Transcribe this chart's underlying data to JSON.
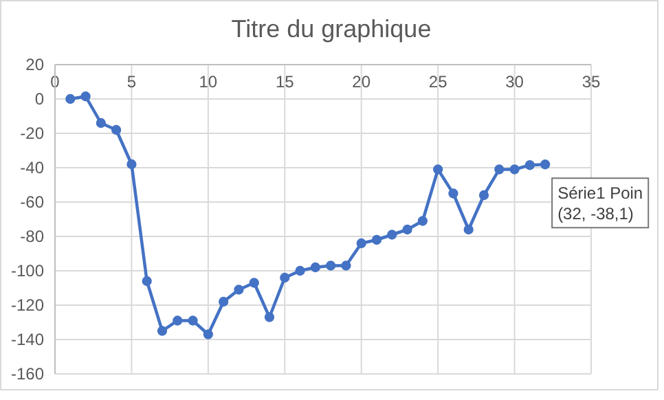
{
  "chart_data": {
    "type": "line",
    "title": "Titre du graphique",
    "x": [
      1,
      2,
      3,
      4,
      5,
      6,
      7,
      8,
      9,
      10,
      11,
      12,
      13,
      14,
      15,
      16,
      17,
      18,
      19,
      20,
      21,
      22,
      23,
      24,
      25,
      26,
      27,
      28,
      29,
      30,
      31,
      32
    ],
    "series": [
      {
        "color": "#4472c4",
        "values": [
          0,
          1.5,
          -14,
          -18,
          -38,
          -106,
          -135,
          -129,
          -129,
          -137,
          -118,
          -111,
          -107,
          -127,
          -104,
          -100,
          -98,
          -97,
          -97,
          -84,
          -82,
          -79,
          -76,
          -71,
          -41,
          -55,
          -76,
          -56,
          -41,
          -41,
          -38.5,
          -38.1
        ]
      }
    ],
    "xlim": [
      0,
      35
    ],
    "xticks": [
      0,
      5,
      10,
      15,
      20,
      25,
      30,
      35
    ],
    "ylim": [
      -160,
      20
    ],
    "yticks": [
      -160,
      -140,
      -120,
      -100,
      -80,
      -60,
      -40,
      -20,
      0,
      20
    ],
    "grid": true,
    "marker": "circle",
    "line_style": "solid",
    "annotations": [
      {
        "text": "Série1 Poin\n(32, -38,1)",
        "x": 32,
        "y": -38.1
      }
    ]
  }
}
